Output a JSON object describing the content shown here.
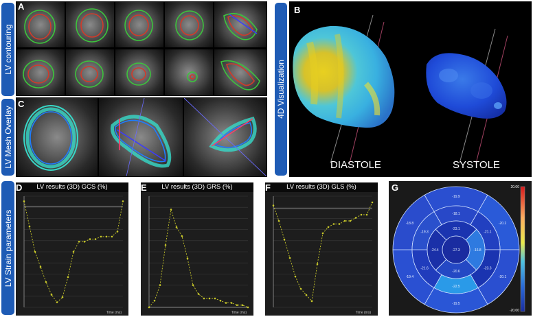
{
  "left_labels": {
    "contouring": "LV contouring",
    "mesh": "LV Mesh Overlay",
    "strain": "LV Strain parameters"
  },
  "right_label": "4D Visualization",
  "panel_letters": {
    "A": "A",
    "B": "B",
    "C": "C",
    "D": "D",
    "E": "E",
    "F": "F",
    "G": "G"
  },
  "viz": {
    "diastole": "DIASTOLE",
    "systole": "SYSTOLE"
  },
  "colors": {
    "accent_blue": "#1e5bb5",
    "trace_yellow": "#c9c92a",
    "contour_red": "#d23a2a",
    "contour_green": "#3cc43c"
  },
  "chart_data": [
    {
      "type": "line",
      "title": "LV results (3D) GCS (%)",
      "xlabel": "Time (ms)",
      "x": [
        0,
        40,
        80,
        120,
        160,
        200,
        240,
        280,
        320,
        360,
        400,
        440,
        480,
        520,
        560,
        600,
        640,
        680,
        720
      ],
      "series": [
        {
          "values": [
            2,
            -8,
            -18,
            -24,
            -30,
            -35,
            -38,
            -36,
            -28,
            -18,
            -14,
            -14,
            -13,
            -13,
            -12,
            -12,
            -12,
            -10,
            2
          ]
        }
      ],
      "ylim": [
        -40,
        4
      ]
    },
    {
      "type": "line",
      "title": "LV results (3D) GRS (%)",
      "xlabel": "Time (ms)",
      "x": [
        0,
        40,
        80,
        120,
        160,
        200,
        240,
        280,
        320,
        360,
        400,
        440,
        480,
        520,
        560,
        600,
        640,
        680,
        720
      ],
      "series": [
        {
          "values": [
            0,
            3,
            10,
            28,
            44,
            36,
            32,
            22,
            10,
            6,
            4,
            4,
            4,
            3,
            2,
            2,
            1,
            1,
            0
          ]
        }
      ],
      "ylim": [
        0,
        50
      ]
    },
    {
      "type": "line",
      "title": "LV results (3D) GLS (%)",
      "xlabel": "Time (ms)",
      "x": [
        0,
        40,
        80,
        120,
        160,
        200,
        240,
        280,
        320,
        360,
        400,
        440,
        480,
        520,
        560,
        600,
        640,
        680,
        720
      ],
      "series": [
        {
          "values": [
            1,
            -4,
            -10,
            -16,
            -22,
            -26,
            -28,
            -30,
            -18,
            -8,
            -6,
            -5,
            -5,
            -4,
            -4,
            -3,
            -2,
            -2,
            2
          ]
        }
      ],
      "ylim": [
        -32,
        4
      ]
    },
    {
      "type": "heatmap",
      "title": "",
      "segments": {
        "outer": [
          "-19.9",
          "-20.2",
          "-20.1",
          "-19.5",
          "-19.4",
          "-18.8"
        ],
        "mid": [
          "-18.1",
          "-21.1",
          "-23.3",
          "-22.5",
          "-21.6",
          "-19.3"
        ],
        "apical": [
          "-23.1",
          "-16.8",
          "-20.6",
          "-24.4"
        ],
        "apex": "-27.3"
      },
      "colorbar": {
        "max": "20.00",
        "min": "-20.00"
      }
    }
  ]
}
